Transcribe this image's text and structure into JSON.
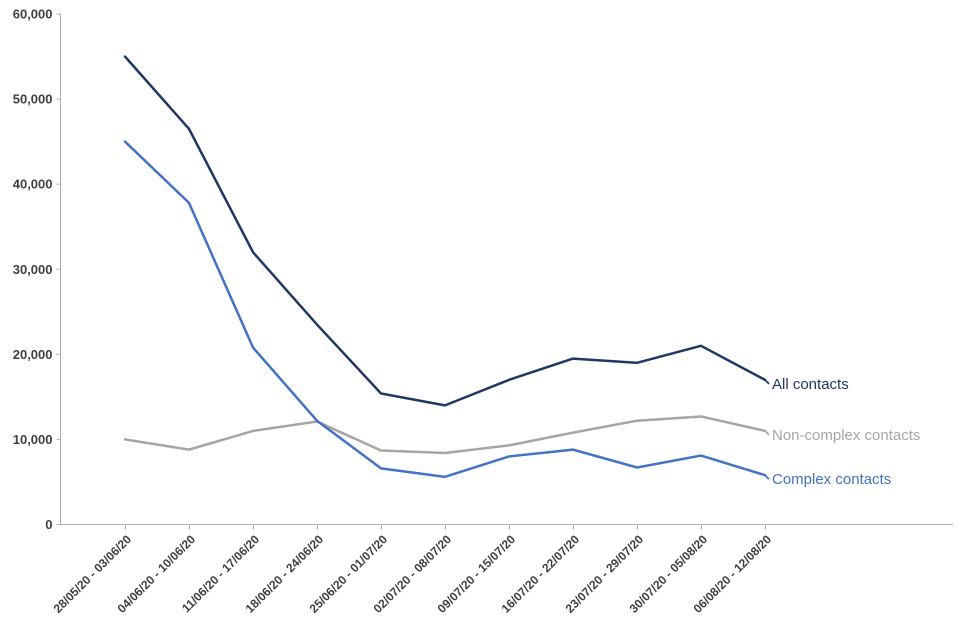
{
  "chart_data": {
    "type": "line",
    "title": "",
    "categories": [
      "28/05/20 - 03/06/20",
      "04/06/20 - 10/06/20",
      "11/06/20 - 17/06/20",
      "18/06/20 - 24/06/20",
      "25/06/20 - 01/07/20",
      "02/07/20 - 08/07/20",
      "09/07/20 - 15/07/20",
      "16/07/20 - 22/07/20",
      "23/07/20 - 29/07/20",
      "30/07/20 - 05/08/20",
      "06/08/20 - 12/08/20"
    ],
    "series": [
      {
        "name": "All contacts",
        "color": "#1f3864",
        "values": [
          55000,
          46500,
          32000,
          23500,
          15400,
          14000,
          17000,
          19500,
          19000,
          21000,
          17000
        ]
      },
      {
        "name": "Non-complex contacts",
        "color": "#a6a6a6",
        "values": [
          10000,
          8800,
          11000,
          12100,
          8700,
          8400,
          9300,
          10800,
          12200,
          12700,
          11000
        ]
      },
      {
        "name": "Complex contacts",
        "color": "#4472c4",
        "values": [
          45000,
          37800,
          20800,
          12200,
          6600,
          5600,
          8000,
          8800,
          6700,
          8100,
          5800
        ]
      }
    ],
    "xlabel": "",
    "ylabel": "",
    "ylim": [
      0,
      60000
    ],
    "ytick_step": 10000,
    "ytick_labels": [
      "0",
      "10,000",
      "20,000",
      "30,000",
      "40,000",
      "50,000",
      "60,000"
    ],
    "grid": false,
    "legend_position": "line-end-labels",
    "axis_color": "#b0b0b0",
    "tick_label_color": "#404040"
  }
}
